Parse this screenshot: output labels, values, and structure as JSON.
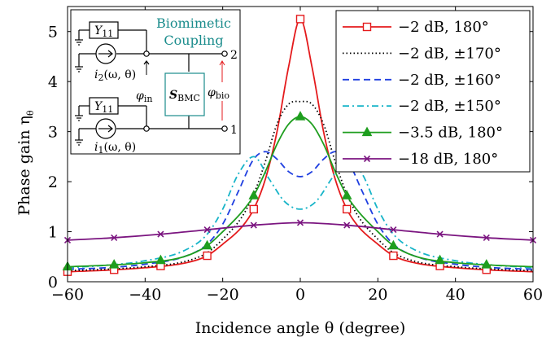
{
  "chart_data": {
    "type": "line",
    "xlabel": "Incidence angle θ (degree)",
    "ylabel": "Phase gain η",
    "ylabel_sub": "θ",
    "xlim": [
      -60,
      60
    ],
    "ylim": [
      0,
      5.5
    ],
    "xticks": [
      -60,
      -40,
      -20,
      0,
      20,
      40,
      60
    ],
    "xtick_labels": [
      "−60",
      "−40",
      "−20",
      "0",
      "20",
      "40",
      "60"
    ],
    "yticks": [
      0,
      1,
      2,
      3,
      4,
      5
    ],
    "ytick_labels": [
      "0",
      "1",
      "2",
      "3",
      "4",
      "5"
    ],
    "grid": false,
    "legend_position": "top-right",
    "series": [
      {
        "name": "−2 dB, 180°",
        "color": "#e41a1c",
        "dash": "solid",
        "marker": "square",
        "x": [
          -60,
          -50,
          -40,
          -30,
          -24,
          -20,
          -15,
          -12,
          -9,
          -6,
          -3,
          0,
          3,
          6,
          9,
          12,
          15,
          20,
          24,
          30,
          40,
          50,
          60
        ],
        "y": [
          0.2,
          0.23,
          0.28,
          0.37,
          0.52,
          0.75,
          1.1,
          1.45,
          2.05,
          3.0,
          4.3,
          5.25,
          4.3,
          3.0,
          2.05,
          1.45,
          1.1,
          0.75,
          0.52,
          0.37,
          0.28,
          0.23,
          0.2
        ],
        "marker_x": [
          -60,
          -48,
          -36,
          -24,
          -12,
          0,
          12,
          24,
          36,
          48
        ]
      },
      {
        "name": "−2 dB, ±170°",
        "color": "#000000",
        "dash": "dotted",
        "marker": "none",
        "x": [
          -60,
          -50,
          -40,
          -30,
          -24,
          -20,
          -15,
          -12,
          -9,
          -6,
          -3,
          0,
          3,
          6,
          9,
          12,
          15,
          20,
          24,
          30,
          40,
          50,
          60
        ],
        "y": [
          0.22,
          0.25,
          0.3,
          0.4,
          0.58,
          0.85,
          1.3,
          1.75,
          2.4,
          3.15,
          3.55,
          3.6,
          3.55,
          3.15,
          2.4,
          1.75,
          1.3,
          0.85,
          0.58,
          0.4,
          0.3,
          0.25,
          0.22
        ]
      },
      {
        "name": "−2 dB, ±160°",
        "color": "#1f3fe0",
        "dash": "dashed",
        "marker": "none",
        "x": [
          -60,
          -50,
          -40,
          -30,
          -24,
          -20,
          -16,
          -12,
          -9,
          -6,
          -3,
          0,
          3,
          6,
          9,
          12,
          16,
          20,
          24,
          30,
          40,
          50,
          60
        ],
        "y": [
          0.25,
          0.28,
          0.35,
          0.5,
          0.75,
          1.15,
          1.8,
          2.45,
          2.6,
          2.45,
          2.2,
          2.1,
          2.2,
          2.45,
          2.6,
          2.45,
          1.8,
          1.15,
          0.75,
          0.5,
          0.35,
          0.28,
          0.25
        ]
      },
      {
        "name": "−2 dB, ±150°",
        "color": "#17b4c8",
        "dash": "dashdot",
        "marker": "none",
        "x": [
          -60,
          -50,
          -40,
          -30,
          -24,
          -20,
          -16,
          -12,
          -8,
          -4,
          0,
          4,
          8,
          12,
          16,
          20,
          24,
          30,
          40,
          50,
          60
        ],
        "y": [
          0.28,
          0.33,
          0.42,
          0.62,
          0.95,
          1.45,
          2.15,
          2.5,
          2.05,
          1.6,
          1.45,
          1.6,
          2.05,
          2.5,
          2.15,
          1.45,
          0.95,
          0.62,
          0.42,
          0.33,
          0.28
        ]
      },
      {
        "name": "−3.5 dB, 180°",
        "color": "#1e9e1e",
        "dash": "solid",
        "marker": "triangle",
        "x": [
          -60,
          -50,
          -40,
          -30,
          -24,
          -20,
          -15,
          -12,
          -9,
          -6,
          -3,
          0,
          3,
          6,
          9,
          12,
          15,
          20,
          24,
          30,
          40,
          50,
          60
        ],
        "y": [
          0.3,
          0.33,
          0.38,
          0.5,
          0.72,
          1.0,
          1.4,
          1.72,
          2.2,
          2.75,
          3.15,
          3.3,
          3.15,
          2.75,
          2.2,
          1.72,
          1.4,
          1.0,
          0.72,
          0.5,
          0.38,
          0.33,
          0.3
        ],
        "marker_x": [
          -60,
          -48,
          -36,
          -24,
          -12,
          0,
          12,
          24,
          36,
          48
        ]
      },
      {
        "name": "−18 dB, 180°",
        "color": "#7b1580",
        "dash": "solid",
        "marker": "x",
        "x": [
          -60,
          -48,
          -36,
          -24,
          -12,
          0,
          12,
          24,
          36,
          48,
          60
        ],
        "y": [
          0.83,
          0.88,
          0.95,
          1.04,
          1.13,
          1.18,
          1.13,
          1.04,
          0.95,
          0.88,
          0.83
        ],
        "marker_x": [
          -60,
          -48,
          -36,
          -24,
          -12,
          0,
          12,
          24,
          36,
          48,
          60
        ]
      }
    ]
  },
  "inset": {
    "y11_label": "Y",
    "y11_sub": "11",
    "source_top": "i",
    "source_top_sub": "2",
    "source_top_args": "(ω, θ)",
    "source_bottom": "i",
    "source_bottom_sub": "1",
    "source_bottom_args": "(ω, θ)",
    "title_line1": "Biomimetic",
    "title_line2": "Coupling",
    "block_label": "S",
    "block_sub": "BMC",
    "phi_in": "φ",
    "phi_in_sub": "in",
    "phi_bio": "φ",
    "phi_bio_sub": "bio",
    "port_top": "2",
    "port_bottom": "1"
  }
}
